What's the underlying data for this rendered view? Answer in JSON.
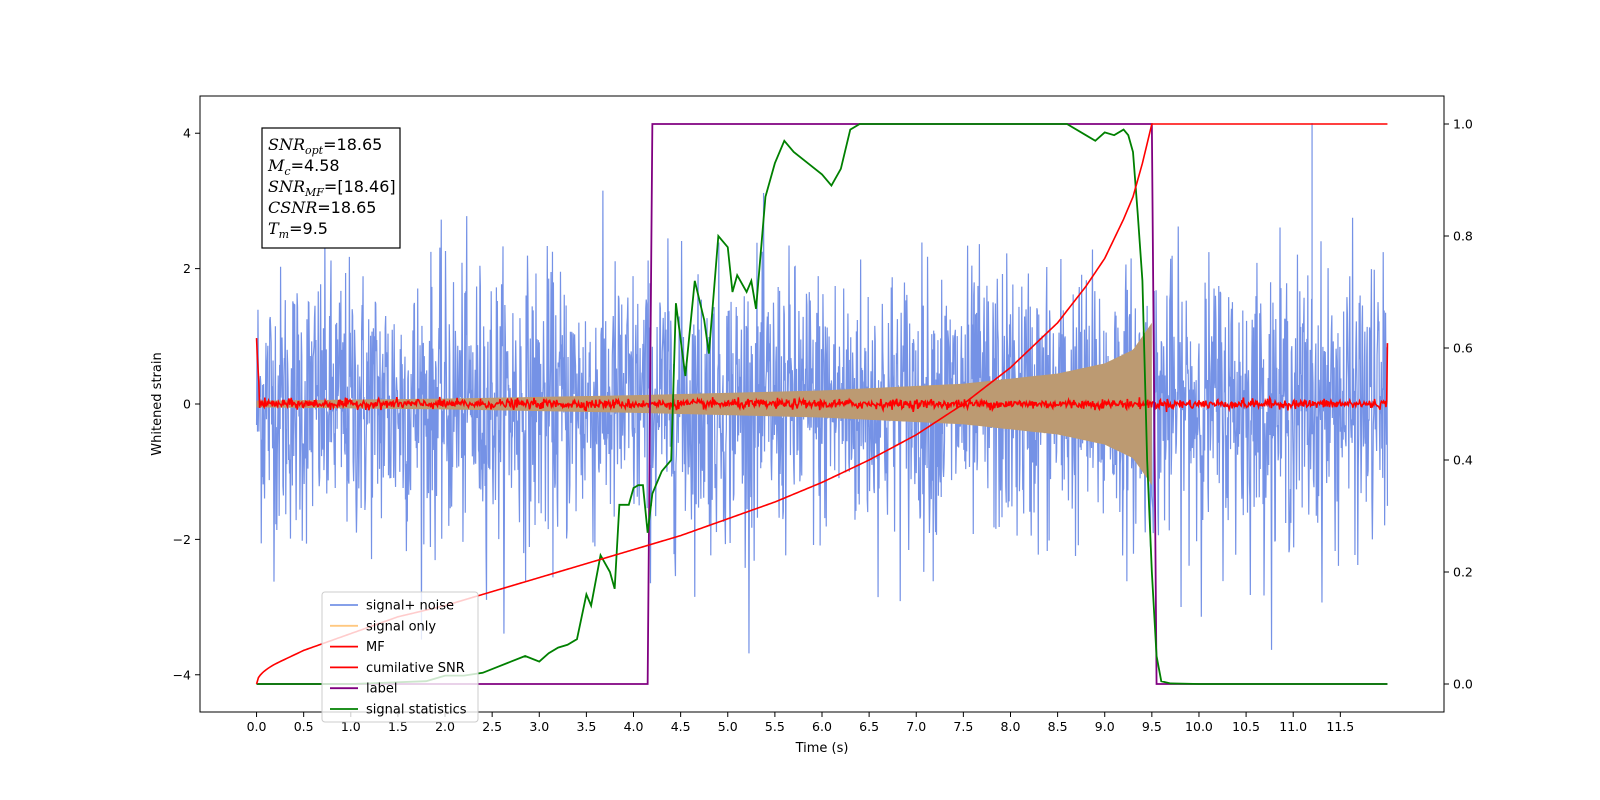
{
  "chart_data": {
    "type": "line",
    "xlabel": "Time (s)",
    "ylabel": "Whitened strain",
    "xlim": [
      -0.6,
      12.6
    ],
    "ylim_left": [
      -4.55,
      4.55
    ],
    "ylim_right": [
      -0.05,
      1.05
    ],
    "x_ticks": [
      "0.0",
      "0.5",
      "1.0",
      "1.5",
      "2.0",
      "2.5",
      "3.0",
      "3.5",
      "4.0",
      "4.5",
      "5.0",
      "5.5",
      "6.0",
      "6.5",
      "7.0",
      "7.5",
      "8.0",
      "8.5",
      "9.0",
      "9.5",
      "10.0",
      "10.5",
      "11.0",
      "11.5"
    ],
    "y_ticks_left": [
      "−4",
      "−2",
      "0",
      "2",
      "4"
    ],
    "y_ticks_right": [
      "0.0",
      "0.2",
      "0.4",
      "0.6",
      "0.8",
      "1.0"
    ],
    "info_box": [
      {
        "sym": "SNR",
        "sub": "opt",
        "val": "=18.65"
      },
      {
        "sym": "M",
        "sub": "c",
        "val": "=4.58"
      },
      {
        "sym": "SNR",
        "sub": "MF",
        "val": "=[18.46]"
      },
      {
        "sym": "CSNR",
        "sub": "",
        "val": "=18.65"
      },
      {
        "sym": "T",
        "sub": "m",
        "val": "=9.5"
      }
    ],
    "legend": [
      {
        "label": "signal+ noise",
        "color": "#7592e6"
      },
      {
        "label": "signal only",
        "color": "#ffc880"
      },
      {
        "label": "MF",
        "color": "#ff0000"
      },
      {
        "label": "cumilative SNR",
        "color": "#ff0000"
      },
      {
        "label": "label",
        "color": "#800080"
      },
      {
        "label": "signal statistics",
        "color": "#008000"
      }
    ],
    "series": [
      {
        "name": "signal+ noise",
        "axis": "left",
        "color": "#7592e6",
        "description_range": [
          0.0,
          12.0
        ],
        "noise_amplitude": 1.0,
        "max_value": 4.15,
        "min_value": -3.9
      },
      {
        "name": "signal only",
        "axis": "left",
        "color": "#bc9a72",
        "envelope": {
          "x": [
            0.0,
            2.0,
            4.0,
            6.0,
            7.5,
            8.5,
            9.0,
            9.3,
            9.45,
            9.5
          ],
          "amp": [
            0.05,
            0.08,
            0.13,
            0.2,
            0.3,
            0.45,
            0.6,
            0.8,
            1.1,
            1.2
          ]
        }
      },
      {
        "name": "MF",
        "axis": "left",
        "color": "#ff0000",
        "x": [
          0.0,
          0.03,
          12.0
        ],
        "mean": [
          1.0,
          0.1,
          0.0
        ],
        "end_value": 0.9
      },
      {
        "name": "cumilative SNR",
        "axis": "right",
        "color": "#ff0000",
        "x": [
          0.0,
          0.25,
          0.5,
          1.0,
          1.5,
          2.0,
          2.5,
          3.0,
          3.5,
          4.0,
          4.5,
          5.0,
          5.5,
          6.0,
          6.5,
          7.0,
          7.5,
          8.0,
          8.5,
          8.8,
          9.0,
          9.2,
          9.3,
          9.4,
          9.5,
          10.0,
          11.0,
          12.0
        ],
        "y": [
          0.0,
          0.04,
          0.06,
          0.09,
          0.12,
          0.14,
          0.165,
          0.19,
          0.215,
          0.24,
          0.265,
          0.295,
          0.325,
          0.36,
          0.4,
          0.445,
          0.5,
          0.565,
          0.645,
          0.71,
          0.76,
          0.83,
          0.87,
          0.93,
          1.0,
          1.0,
          1.0,
          1.0
        ]
      },
      {
        "name": "label",
        "axis": "right",
        "color": "#800080",
        "x": [
          0.0,
          4.15,
          4.2,
          9.5,
          9.55,
          12.0
        ],
        "y": [
          0.0,
          0.0,
          1.0,
          1.0,
          0.0,
          0.0
        ]
      },
      {
        "name": "signal statistics",
        "axis": "right",
        "color": "#008000",
        "x": [
          0.0,
          1.0,
          1.8,
          2.0,
          2.2,
          2.4,
          2.55,
          2.7,
          2.85,
          3.0,
          3.1,
          3.2,
          3.3,
          3.4,
          3.5,
          3.55,
          3.65,
          3.75,
          3.8,
          3.85,
          3.95,
          4.0,
          4.05,
          4.1,
          4.15,
          4.2,
          4.3,
          4.4,
          4.45,
          4.55,
          4.65,
          4.75,
          4.8,
          4.9,
          5.0,
          5.05,
          5.1,
          5.2,
          5.25,
          5.3,
          5.4,
          5.5,
          5.6,
          5.7,
          5.85,
          6.0,
          6.1,
          6.2,
          6.3,
          6.4,
          6.6,
          6.8,
          7.0,
          7.5,
          8.0,
          8.6,
          8.8,
          8.9,
          9.0,
          9.1,
          9.2,
          9.25,
          9.3,
          9.35,
          9.4,
          9.45,
          9.5,
          9.55,
          9.6,
          9.7,
          10.0,
          11.0,
          12.0
        ],
        "y": [
          0.0,
          0.0,
          0.005,
          0.015,
          0.015,
          0.02,
          0.03,
          0.04,
          0.05,
          0.04,
          0.055,
          0.065,
          0.07,
          0.08,
          0.16,
          0.14,
          0.23,
          0.2,
          0.17,
          0.32,
          0.32,
          0.35,
          0.355,
          0.355,
          0.27,
          0.34,
          0.38,
          0.4,
          0.68,
          0.55,
          0.72,
          0.65,
          0.59,
          0.8,
          0.78,
          0.7,
          0.73,
          0.7,
          0.72,
          0.67,
          0.87,
          0.93,
          0.97,
          0.95,
          0.93,
          0.91,
          0.89,
          0.92,
          0.99,
          1.0,
          1.0,
          1.0,
          1.0,
          1.0,
          1.0,
          1.0,
          0.98,
          0.97,
          0.985,
          0.98,
          0.99,
          0.98,
          0.95,
          0.84,
          0.72,
          0.4,
          0.2,
          0.05,
          0.005,
          0.001,
          0.0,
          0.0,
          0.0
        ]
      }
    ]
  }
}
